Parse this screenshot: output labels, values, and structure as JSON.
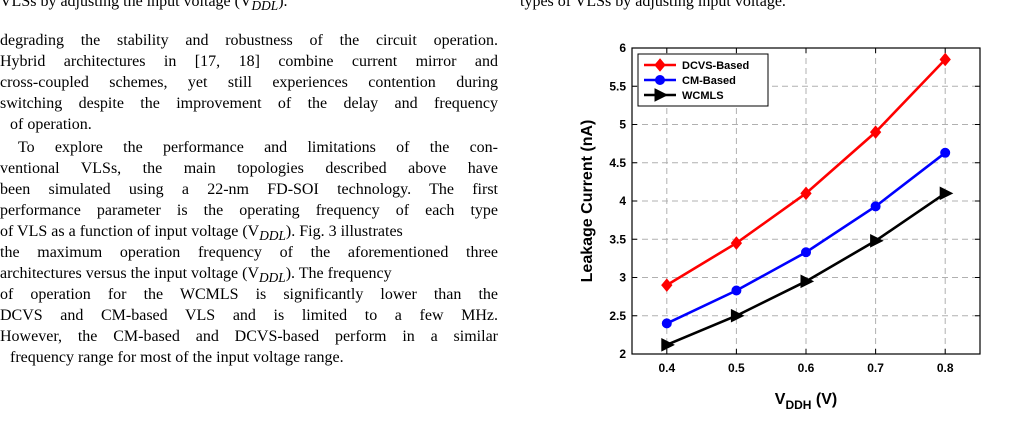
{
  "left_column": {
    "cut_line": "VLSs by adjusting the input voltage (V",
    "cut_line_sub": "DDL",
    "cut_line_end": ").",
    "lines": [
      "degrading the stability and robustness of the circuit operation.",
      "Hybrid architectures in [17, 18] combine current mirror and",
      "cross-coupled schemes, yet still experiences contention during",
      "switching despite the improvement of the delay and frequency",
      "of operation.",
      "To explore the performance and limitations of the con-",
      "ventional VLSs, the main topologies described above have",
      "been simulated using a 22-nm FD-SOI technology. The first",
      "performance parameter is the operating frequency of each type",
      "of VLS as a function of input voltage (V",
      "the maximum operation frequency of the aforementioned three",
      "architectures versus the input voltage (V",
      "of operation for the WCMLS is significantly lower than the",
      "DCVS and CM-based VLS and is limited to a few MHz.",
      "However, the CM-based and DCVS-based perform in a similar",
      "frequency range for most of the input voltage range."
    ],
    "line10_sub": "DDL",
    "line10_end": "). Fig. 3 illustrates",
    "line12_sub": "DDL",
    "line12_end": "). The frequency"
  },
  "right_column": {
    "cut_line": "types of VLSs by adjusting input voltage."
  },
  "chart_data": {
    "type": "line",
    "xlabel": "V",
    "xlabel_sub": "DDH",
    "xlabel_unit": " (V)",
    "ylabel": "Leakage Current (nA)",
    "x": [
      0.4,
      0.5,
      0.6,
      0.7,
      0.8
    ],
    "x_ticks": [
      "0.4",
      "0.5",
      "0.6",
      "0.7",
      "0.8"
    ],
    "y_ticks": [
      "2",
      "2.5",
      "3",
      "3.5",
      "4",
      "4.5",
      "5",
      "5.5",
      "6"
    ],
    "xlim": [
      0.35,
      0.85
    ],
    "ylim": [
      2,
      6
    ],
    "grid": true,
    "legend_position": "top-left",
    "series": [
      {
        "name": "DCVS-Based",
        "color": "#ff0000",
        "marker": "diamond",
        "values": [
          2.9,
          3.45,
          4.1,
          4.9,
          5.85
        ]
      },
      {
        "name": "CM-Based",
        "color": "#0000ff",
        "marker": "circle",
        "values": [
          2.4,
          2.83,
          3.33,
          3.93,
          4.63
        ]
      },
      {
        "name": "WCMLS",
        "color": "#000000",
        "marker": "triangle-right",
        "values": [
          2.12,
          2.5,
          2.95,
          3.48,
          4.1
        ]
      }
    ]
  }
}
